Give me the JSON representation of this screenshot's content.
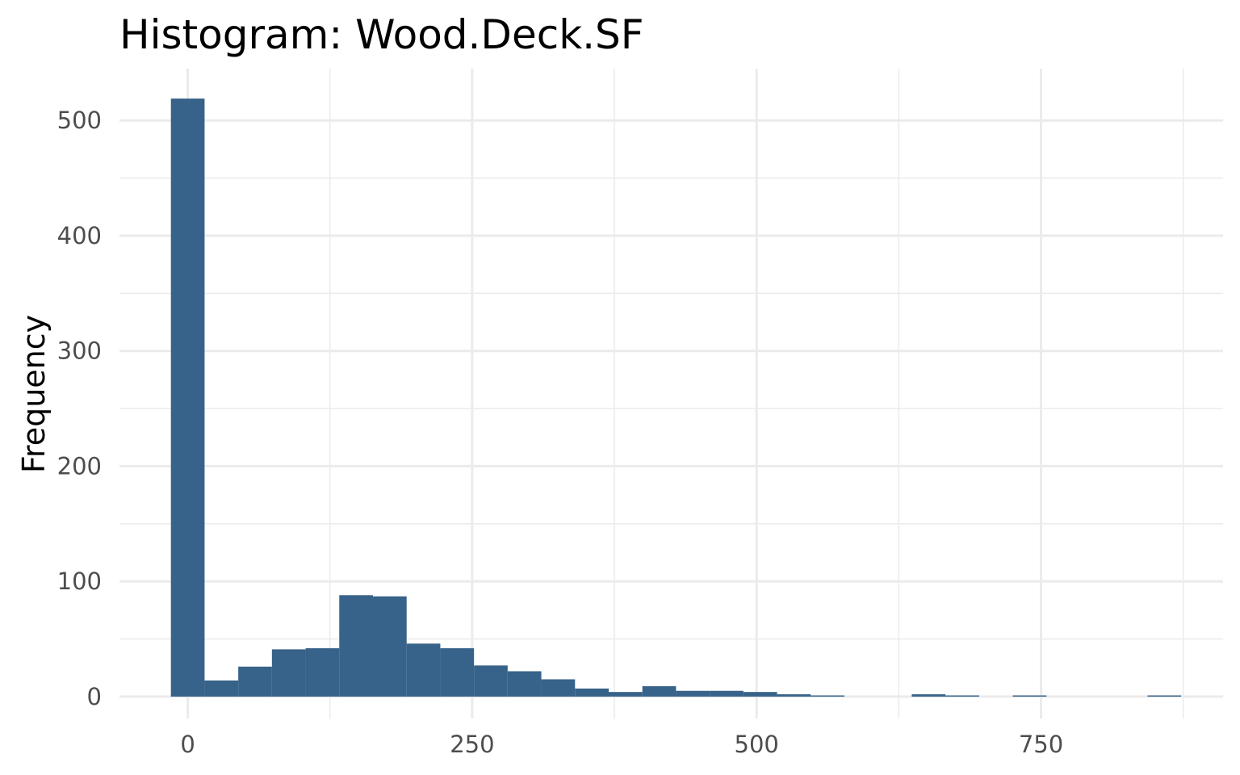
{
  "chart_data": {
    "type": "bar",
    "title": "Histogram:  Wood.Deck.SF",
    "xlabel": "",
    "ylabel": "Frequency",
    "x_ticks": [
      0,
      250,
      500,
      750
    ],
    "x_tick_labels": [
      "0",
      "250",
      "500",
      "750"
    ],
    "y_ticks": [
      0,
      100,
      200,
      300,
      400,
      500
    ],
    "y_tick_labels": [
      "0",
      "100",
      "200",
      "300",
      "400",
      "500"
    ],
    "xlim": [
      -60,
      910
    ],
    "ylim": [
      -19,
      545
    ],
    "bin_width": 29.6,
    "bins": [
      {
        "x0": -14.8,
        "x1": 14.8,
        "count": 519
      },
      {
        "x0": 14.8,
        "x1": 44.4,
        "count": 14
      },
      {
        "x0": 44.4,
        "x1": 74.0,
        "count": 26
      },
      {
        "x0": 74.0,
        "x1": 103.6,
        "count": 41
      },
      {
        "x0": 103.6,
        "x1": 133.2,
        "count": 42
      },
      {
        "x0": 133.2,
        "x1": 162.8,
        "count": 88
      },
      {
        "x0": 162.8,
        "x1": 192.4,
        "count": 87
      },
      {
        "x0": 192.4,
        "x1": 222.0,
        "count": 46
      },
      {
        "x0": 222.0,
        "x1": 251.6,
        "count": 42
      },
      {
        "x0": 251.6,
        "x1": 281.2,
        "count": 27
      },
      {
        "x0": 281.2,
        "x1": 310.8,
        "count": 22
      },
      {
        "x0": 310.8,
        "x1": 340.4,
        "count": 15
      },
      {
        "x0": 340.4,
        "x1": 370.0,
        "count": 7
      },
      {
        "x0": 370.0,
        "x1": 399.6,
        "count": 4
      },
      {
        "x0": 399.6,
        "x1": 429.2,
        "count": 9
      },
      {
        "x0": 429.2,
        "x1": 458.8,
        "count": 5
      },
      {
        "x0": 458.8,
        "x1": 488.4,
        "count": 5
      },
      {
        "x0": 488.4,
        "x1": 518.0,
        "count": 4
      },
      {
        "x0": 518.0,
        "x1": 547.6,
        "count": 2
      },
      {
        "x0": 547.6,
        "x1": 577.2,
        "count": 1
      },
      {
        "x0": 636.4,
        "x1": 666.0,
        "count": 2
      },
      {
        "x0": 666.0,
        "x1": 695.6,
        "count": 1
      },
      {
        "x0": 725.2,
        "x1": 754.8,
        "count": 1
      },
      {
        "x0": 843.6,
        "x1": 873.2,
        "count": 1
      }
    ],
    "bar_color": "#376289",
    "grid": true,
    "legend": "none"
  }
}
